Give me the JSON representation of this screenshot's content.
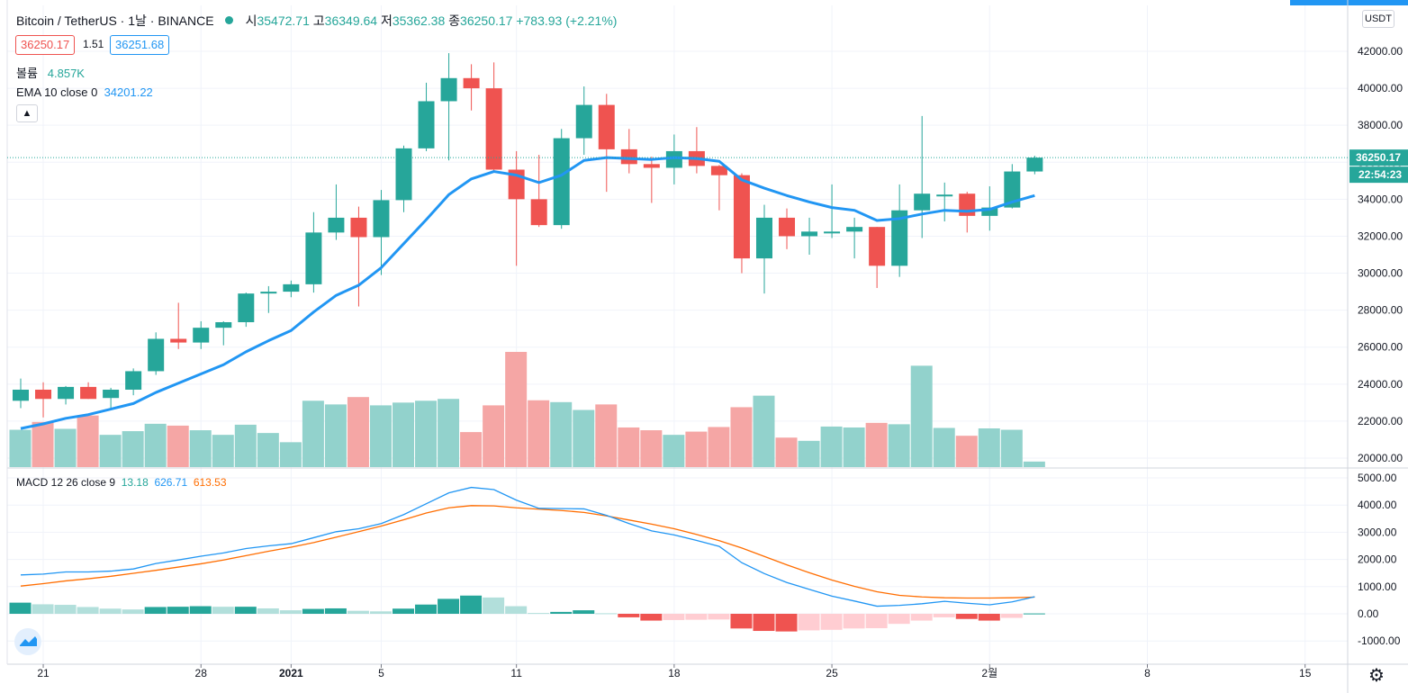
{
  "header": {
    "symbol": "Bitcoin / TetherUS · 1날 · BINANCE",
    "open_label": "시",
    "open": "35472.71",
    "high_label": "고",
    "high": "36349.64",
    "low_label": "저",
    "low": "35362.38",
    "close_label": "종",
    "close": "36250.17",
    "change": "+783.93 (+2.21%)"
  },
  "sell_price": "36250.17",
  "spread": "1.51",
  "buy_price": "36251.68",
  "volume_label": "볼륨",
  "volume_value": "4.857K",
  "ema_label": "EMA 10 close 0",
  "ema_value": "34201.22",
  "macd_label": "MACD 12 26 close 9",
  "macd_hist": "13.18",
  "macd_line": "626.71",
  "macd_signal": "613.53",
  "currency_button": "USDT",
  "last_price_tag": "36250.17",
  "countdown_tag": "22:54:23",
  "colors": {
    "up": "#26a69a",
    "down": "#ef5350",
    "vol_up": "#92d2cc",
    "vol_down": "#f5a6a5",
    "ema": "#2196f3",
    "macd": "#2196f3",
    "signal": "#ff6d00",
    "hist_up_strong": "#26a69a",
    "hist_up_weak": "#b2dfdb",
    "hist_down_strong": "#ef5350",
    "hist_down_weak": "#ffcdd2"
  },
  "chart_data": {
    "type": "candlestick",
    "price_axis": {
      "min": 20000,
      "max": 44000,
      "ticks": [
        20000,
        22000,
        24000,
        26000,
        28000,
        30000,
        32000,
        34000,
        36000,
        38000,
        40000,
        42000
      ],
      "tick_labels": [
        "20000.00",
        "22000.00",
        "24000.00",
        "26000.00",
        "28000.00",
        "30000.00",
        "32000.00",
        "34000.00",
        "36000.00",
        "38000.00",
        "40000.00",
        "42000.00"
      ]
    },
    "macd_axis": {
      "min": -1500,
      "max": 5300,
      "ticks": [
        -1000,
        0,
        1000,
        2000,
        3000,
        4000,
        5000
      ],
      "tick_labels": [
        "-1000.00",
        "0.00",
        "1000.00",
        "2000.00",
        "3000.00",
        "4000.00",
        "5000.00"
      ]
    },
    "x_ticks": [
      {
        "label": "21",
        "index": 1
      },
      {
        "label": "28",
        "index": 8
      },
      {
        "label": "2021",
        "index": 12
      },
      {
        "label": "5",
        "index": 16
      },
      {
        "label": "11",
        "index": 22
      },
      {
        "label": "18",
        "index": 29
      },
      {
        "label": "25",
        "index": 36
      },
      {
        "label": "2월",
        "index": 43
      },
      {
        "label": "8",
        "index": 50
      },
      {
        "label": "15",
        "index": 57
      }
    ],
    "ohlc": [
      [
        23100,
        24300,
        22700,
        23700
      ],
      [
        23700,
        24100,
        22200,
        23200
      ],
      [
        23200,
        23900,
        22900,
        23850
      ],
      [
        23850,
        24100,
        23200,
        23200
      ],
      [
        23250,
        23800,
        22650,
        23700
      ],
      [
        23700,
        24850,
        23400,
        24700
      ],
      [
        24700,
        26800,
        24500,
        26450
      ],
      [
        26450,
        28400,
        25900,
        26250
      ],
      [
        26250,
        27400,
        25900,
        27050
      ],
      [
        27050,
        27400,
        26100,
        27350
      ],
      [
        27350,
        28950,
        27100,
        28900
      ],
      [
        28900,
        29300,
        27850,
        29000
      ],
      [
        29000,
        29600,
        28700,
        29400
      ],
      [
        29400,
        33300,
        28950,
        32200
      ],
      [
        32200,
        34800,
        31800,
        33000
      ],
      [
        33000,
        33600,
        28200,
        31950
      ],
      [
        31950,
        34500,
        29900,
        33950
      ],
      [
        33950,
        36900,
        33300,
        36750
      ],
      [
        36750,
        40300,
        36600,
        39300
      ],
      [
        39300,
        41900,
        36100,
        40550
      ],
      [
        40550,
        41300,
        38800,
        40000
      ],
      [
        40000,
        41400,
        35500,
        35600
      ],
      [
        35600,
        36600,
        30400,
        34000
      ],
      [
        34000,
        36400,
        32500,
        32600
      ],
      [
        32600,
        37800,
        32400,
        37300
      ],
      [
        37300,
        40100,
        36400,
        39100
      ],
      [
        39100,
        39700,
        34400,
        36700
      ],
      [
        36700,
        37800,
        35400,
        35900
      ],
      [
        35900,
        36300,
        33800,
        35700
      ],
      [
        35700,
        37500,
        34800,
        36600
      ],
      [
        36600,
        37900,
        35400,
        35800
      ],
      [
        35800,
        35850,
        33400,
        35300
      ],
      [
        35300,
        35400,
        30000,
        30800
      ],
      [
        30800,
        33700,
        28900,
        33000
      ],
      [
        33000,
        33500,
        31300,
        32000
      ],
      [
        32000,
        33000,
        31000,
        32250
      ],
      [
        32250,
        34800,
        31900,
        32250
      ],
      [
        32250,
        33000,
        30800,
        32500
      ],
      [
        32500,
        32500,
        29200,
        30400
      ],
      [
        30400,
        34800,
        29800,
        33400
      ],
      [
        33400,
        38500,
        31900,
        34300
      ],
      [
        34250,
        34900,
        32800,
        34250
      ],
      [
        34300,
        34400,
        32200,
        33100
      ],
      [
        33100,
        34700,
        32300,
        33550
      ],
      [
        33550,
        35900,
        33500,
        35500
      ],
      [
        35500,
        36350,
        35350,
        36250
      ]
    ],
    "ema10": [
      21600,
      21850,
      22150,
      22350,
      22650,
      22950,
      23550,
      24050,
      24550,
      25050,
      25750,
      26350,
      26900,
      27900,
      28800,
      29350,
      30300,
      31600,
      32900,
      34250,
      35100,
      35500,
      35300,
      34900,
      35300,
      36100,
      36250,
      36200,
      36150,
      36250,
      36200,
      36050,
      35050,
      34600,
      34200,
      33850,
      33550,
      33400,
      32850,
      32950,
      33200,
      33400,
      33350,
      33450,
      33850,
      34200
    ],
    "volume_axis": {
      "max": 26000
    },
    "volume": [
      8100,
      9800,
      8300,
      11200,
      7000,
      7800,
      9400,
      9000,
      8000,
      7000,
      9200,
      7400,
      5400,
      14400,
      13600,
      15200,
      13400,
      14000,
      14400,
      14800,
      7600,
      13400,
      25000,
      14500,
      14100,
      12400,
      13600,
      8600,
      8000,
      7000,
      7700,
      8700,
      13000,
      15500,
      6400,
      5700,
      8800,
      8600,
      9600,
      9300,
      22000,
      8500,
      6800,
      8400,
      8100,
      1200
    ],
    "macd": [
      1430,
      1460,
      1540,
      1540,
      1570,
      1650,
      1850,
      1980,
      2120,
      2240,
      2400,
      2500,
      2580,
      2800,
      3020,
      3130,
      3320,
      3650,
      4050,
      4450,
      4650,
      4570,
      4180,
      3880,
      3870,
      3860,
      3620,
      3320,
      3050,
      2900,
      2700,
      2480,
      1880,
      1480,
      1150,
      900,
      650,
      470,
      280,
      310,
      370,
      460,
      390,
      330,
      440,
      627
    ],
    "signal": [
      1020,
      1110,
      1210,
      1290,
      1380,
      1490,
      1600,
      1720,
      1840,
      1980,
      2140,
      2300,
      2450,
      2620,
      2820,
      3020,
      3230,
      3460,
      3710,
      3900,
      3980,
      3970,
      3900,
      3850,
      3800,
      3730,
      3600,
      3450,
      3300,
      3130,
      2920,
      2690,
      2420,
      2110,
      1800,
      1510,
      1240,
      1010,
      810,
      680,
      620,
      590,
      580,
      580,
      590,
      614
    ],
    "histogram": [
      410,
      350,
      330,
      250,
      190,
      160,
      250,
      260,
      280,
      260,
      260,
      200,
      130,
      180,
      200,
      110,
      90,
      190,
      340,
      550,
      670,
      600,
      280,
      30,
      70,
      130,
      20,
      -130,
      -250,
      -230,
      -220,
      -210,
      -540,
      -630,
      -650,
      -610,
      -590,
      -540,
      -530,
      -370,
      -250,
      -130,
      -190,
      -250,
      -150,
      13
    ]
  }
}
